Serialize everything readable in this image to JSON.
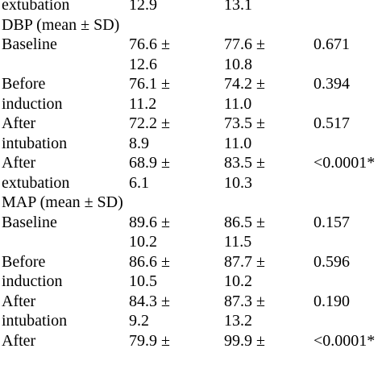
{
  "rows": [
    {
      "kind": "line",
      "c1": "extubation",
      "c2": "12.9",
      "c3": "13.1",
      "c4": ""
    },
    {
      "kind": "section",
      "label": "DBP (mean ± SD)"
    },
    {
      "kind": "line",
      "c1": "Baseline",
      "c2": "76.6 ±",
      "c3": "77.6 ±",
      "c4": "0.671"
    },
    {
      "kind": "line",
      "c1": "",
      "c2": "12.6",
      "c3": "10.8",
      "c4": ""
    },
    {
      "kind": "line",
      "c1": "Before",
      "c2": "76.1 ±",
      "c3": "74.2 ±",
      "c4": "0.394"
    },
    {
      "kind": "line",
      "c1": "induction",
      "c2": "11.2",
      "c3": "11.0",
      "c4": ""
    },
    {
      "kind": "line",
      "c1": "After",
      "c2": "72.2 ±",
      "c3": "73.5 ±",
      "c4": "0.517"
    },
    {
      "kind": "line",
      "c1": "intubation",
      "c2": "8.9",
      "c3": "11.0",
      "c4": ""
    },
    {
      "kind": "line",
      "c1": "After",
      "c2": "68.9 ±",
      "c3": "83.5 ±",
      "c4": "<0.0001*"
    },
    {
      "kind": "line",
      "c1": "extubation",
      "c2": "6.1",
      "c3": "10.3",
      "c4": ""
    },
    {
      "kind": "section",
      "label": "MAP (mean ± SD)"
    },
    {
      "kind": "line",
      "c1": "Baseline",
      "c2": "89.6 ±",
      "c3": "86.5 ±",
      "c4": "0.157"
    },
    {
      "kind": "line",
      "c1": "",
      "c2": "10.2",
      "c3": "11.5",
      "c4": ""
    },
    {
      "kind": "line",
      "c1": "Before",
      "c2": "86.6 ±",
      "c3": "87.7 ±",
      "c4": "0.596"
    },
    {
      "kind": "line",
      "c1": "induction",
      "c2": "10.5",
      "c3": "10.2",
      "c4": ""
    },
    {
      "kind": "line",
      "c1": "After",
      "c2": "84.3 ±",
      "c3": "87.3 ±",
      "c4": "0.190"
    },
    {
      "kind": "line",
      "c1": "intubation",
      "c2": "9.2",
      "c3": "13.2",
      "c4": ""
    },
    {
      "kind": "line",
      "c1": "After",
      "c2": "79.9 ±",
      "c3": "99.9 ±",
      "c4": "<0.0001*"
    }
  ]
}
